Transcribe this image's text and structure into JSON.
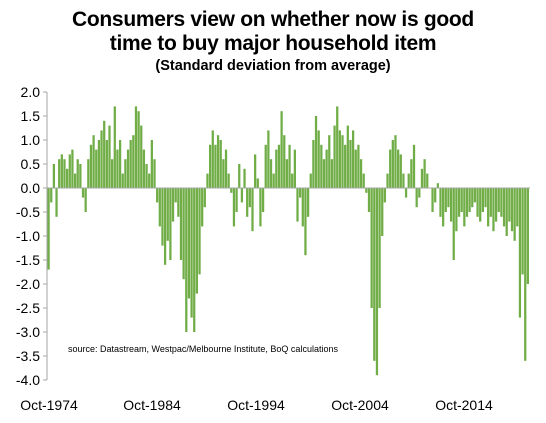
{
  "chart_data": {
    "type": "bar",
    "title_lines": [
      "Consumers view on whether now is good",
      "time to buy major household item"
    ],
    "subtitle": "(Standard deviation from average)",
    "xlabel": "",
    "ylabel": "",
    "ylim": [
      -4.0,
      2.0
    ],
    "yticks": [
      "2.0",
      "1.5",
      "1.0",
      "0.5",
      "0.0",
      "-0.5",
      "-1.0",
      "-1.5",
      "-2.0",
      "-2.5",
      "-3.0",
      "-3.5",
      "-4.0"
    ],
    "xticks": [
      "Oct-1974",
      "Oct-1984",
      "Oct-1994",
      "Oct-2004",
      "Oct-2014"
    ],
    "grid": false,
    "legend": "none",
    "bar_color": "#70AD47",
    "axis_color": "#a6a6a6",
    "annotation": "source:  Datastream, Westpac/Melbourne  Institute,  BoQ calculations",
    "x": [
      1974.75,
      1975.0,
      1975.25,
      1975.5,
      1975.75,
      1976.0,
      1976.25,
      1976.5,
      1976.75,
      1977.0,
      1977.25,
      1977.5,
      1977.75,
      1978.0,
      1978.25,
      1978.5,
      1978.75,
      1979.0,
      1979.25,
      1979.5,
      1979.75,
      1980.0,
      1980.25,
      1980.5,
      1980.75,
      1981.0,
      1981.25,
      1981.5,
      1981.75,
      1982.0,
      1982.25,
      1982.5,
      1982.75,
      1983.0,
      1983.25,
      1983.5,
      1983.75,
      1984.0,
      1984.25,
      1984.5,
      1984.75,
      1985.0,
      1985.25,
      1985.5,
      1985.75,
      1986.0,
      1986.25,
      1986.5,
      1986.75,
      1987.0,
      1987.25,
      1987.5,
      1987.75,
      1988.0,
      1988.25,
      1988.5,
      1988.75,
      1989.0,
      1989.25,
      1989.5,
      1989.75,
      1990.0,
      1990.25,
      1990.5,
      1990.75,
      1991.0,
      1991.25,
      1991.5,
      1991.75,
      1992.0,
      1992.25,
      1992.5,
      1992.75,
      1993.0,
      1993.25,
      1993.5,
      1993.75,
      1994.0,
      1994.25,
      1994.5,
      1994.75,
      1995.0,
      1995.25,
      1995.5,
      1995.75,
      1996.0,
      1996.25,
      1996.5,
      1996.75,
      1997.0,
      1997.25,
      1997.5,
      1997.75,
      1998.0,
      1998.25,
      1998.5,
      1998.75,
      1999.0,
      1999.25,
      1999.5,
      1999.75,
      2000.0,
      2000.25,
      2000.5,
      2000.75,
      2001.0,
      2001.25,
      2001.5,
      2001.75,
      2002.0,
      2002.25,
      2002.5,
      2002.75,
      2003.0,
      2003.25,
      2003.5,
      2003.75,
      2004.0,
      2004.25,
      2004.5,
      2004.75,
      2005.0,
      2005.25,
      2005.5,
      2005.75,
      2006.0,
      2006.25,
      2006.5,
      2006.75,
      2007.0,
      2007.25,
      2007.5,
      2007.75,
      2008.0,
      2008.25,
      2008.5,
      2008.75,
      2009.0,
      2009.25,
      2009.5,
      2009.75,
      2010.0,
      2010.25,
      2010.5,
      2010.75,
      2011.0,
      2011.25,
      2011.5,
      2011.75,
      2012.0,
      2012.25,
      2012.5,
      2012.75,
      2013.0,
      2013.25,
      2013.5,
      2013.75,
      2014.0,
      2014.25,
      2014.5,
      2014.75,
      2015.0,
      2015.25,
      2015.5,
      2015.75,
      2016.0,
      2016.25,
      2016.5,
      2016.75,
      2017.0,
      2017.25,
      2017.5,
      2017.75,
      2018.0,
      2018.25,
      2018.5,
      2018.75,
      2019.0,
      2019.25,
      2019.5,
      2019.75,
      2020.0
    ],
    "values": [
      -1.7,
      -0.3,
      0.5,
      -0.6,
      0.6,
      0.7,
      0.6,
      0.4,
      0.7,
      0.8,
      0.3,
      0.6,
      0.5,
      -0.2,
      -0.5,
      0.6,
      0.9,
      1.1,
      0.8,
      1.0,
      1.2,
      1.4,
      1.0,
      1.3,
      0.6,
      1.7,
      0.8,
      1.0,
      0.3,
      0.6,
      0.8,
      1.0,
      1.1,
      1.7,
      1.6,
      1.3,
      0.8,
      0.5,
      0.3,
      1.0,
      0.6,
      -0.3,
      -0.8,
      -1.2,
      -1.6,
      -1.1,
      -1.5,
      -0.7,
      -0.3,
      -0.6,
      -1.5,
      -1.9,
      -3.0,
      -2.3,
      -2.7,
      -3.0,
      -2.2,
      -1.8,
      -0.8,
      -0.4,
      0.3,
      0.9,
      1.2,
      0.9,
      1.1,
      1.0,
      0.6,
      0.8,
      0.3,
      -0.1,
      -0.8,
      -0.5,
      0.5,
      -0.3,
      0.4,
      -0.6,
      -0.4,
      -0.9,
      0.7,
      0.2,
      -0.8,
      -0.5,
      0.9,
      1.2,
      0.6,
      0.3,
      0.8,
      0.9,
      1.6,
      1.1,
      0.6,
      0.9,
      0.3,
      0.8,
      -0.7,
      -0.2,
      -0.8,
      -1.4,
      -0.6,
      0.3,
      1.0,
      1.5,
      1.2,
      0.9,
      0.6,
      0.8,
      1.1,
      0.6,
      1.3,
      1.7,
      1.2,
      1.1,
      0.9,
      1.3,
      1.0,
      1.2,
      0.8,
      0.9,
      0.6,
      0.3,
      -0.1,
      -0.5,
      -2.5,
      -3.6,
      -3.9,
      -2.5,
      -1.0,
      -0.3,
      0.3,
      0.8,
      1.0,
      1.1,
      0.8,
      0.7,
      0.3,
      -0.2,
      0.3,
      0.6,
      0.9,
      -0.4,
      -0.2,
      0.4,
      0.6,
      0.3,
      0.0,
      -0.5,
      -0.3,
      0.1,
      -0.6,
      -0.8,
      -0.5,
      -0.4,
      -0.7,
      -1.5,
      -0.9,
      -0.6,
      -0.5,
      -0.8,
      -0.6,
      -0.5,
      -0.4,
      -0.3,
      -0.6,
      -0.7,
      -0.5,
      -0.4,
      -0.8,
      -0.6,
      -0.9,
      -0.7,
      -0.5,
      -0.6,
      -0.8,
      -1.0,
      -0.7,
      -0.9,
      -1.1,
      -0.8,
      -2.7,
      -1.8,
      -3.6,
      -2.0
    ]
  }
}
